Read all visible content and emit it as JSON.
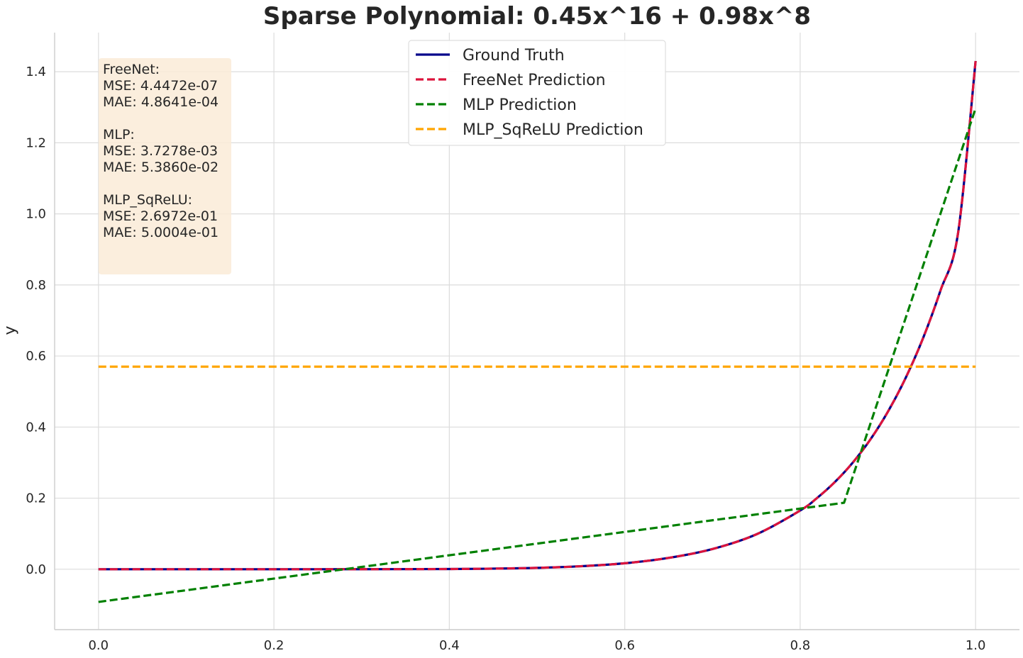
{
  "chart_data": {
    "type": "line",
    "title": "Sparse Polynomial: 0.45x^16 + 0.98x^8",
    "xlabel": "",
    "ylabel": "y",
    "xlim": [
      -0.05,
      1.05
    ],
    "ylim": [
      -0.17,
      1.51
    ],
    "grid": true,
    "x_ticks": [
      0.0,
      0.2,
      0.4,
      0.6,
      0.8,
      1.0
    ],
    "x_tick_labels": [
      "0.0",
      "0.2",
      "0.4",
      "0.6",
      "0.8",
      "1.0"
    ],
    "y_ticks": [
      0.0,
      0.2,
      0.4,
      0.6,
      0.8,
      1.0,
      1.2,
      1.4
    ],
    "y_tick_labels": [
      "0.0",
      "0.2",
      "0.4",
      "0.6",
      "0.8",
      "1.0",
      "1.2",
      "1.4"
    ],
    "legend_position": "top-center",
    "series": [
      {
        "name": "Ground Truth",
        "color": "#00008b",
        "style": "solid",
        "x": [
          0.0,
          0.1,
          0.2,
          0.3,
          0.4,
          0.45,
          0.5,
          0.55,
          0.6,
          0.65,
          0.7,
          0.75,
          0.8,
          0.82,
          0.84,
          0.86,
          0.88,
          0.9,
          0.92,
          0.94,
          0.96,
          0.98,
          1.0
        ],
        "y": [
          0.0,
          0.0,
          0.0,
          0.0001,
          0.0006,
          0.0017,
          0.0038,
          0.0084,
          0.0168,
          0.0319,
          0.0569,
          0.0981,
          0.1652,
          0.202,
          0.2465,
          0.3002,
          0.365,
          0.4431,
          0.537,
          0.6496,
          0.7845,
          0.9458,
          1.43
        ]
      },
      {
        "name": "FreeNet Prediction",
        "color": "#dc143c",
        "style": "dashed",
        "x": [
          0.0,
          0.1,
          0.2,
          0.3,
          0.4,
          0.45,
          0.5,
          0.55,
          0.6,
          0.65,
          0.7,
          0.75,
          0.8,
          0.82,
          0.84,
          0.86,
          0.88,
          0.9,
          0.92,
          0.94,
          0.96,
          0.98,
          1.0
        ],
        "y": [
          0.0,
          0.0,
          0.0,
          0.0001,
          0.0006,
          0.0017,
          0.0038,
          0.0084,
          0.0168,
          0.0319,
          0.0569,
          0.0981,
          0.1652,
          0.202,
          0.2465,
          0.3002,
          0.365,
          0.4431,
          0.537,
          0.6496,
          0.7845,
          0.9458,
          1.43
        ]
      },
      {
        "name": "MLP Prediction",
        "color": "#008000",
        "style": "dashed",
        "x": [
          0.0,
          0.85,
          1.0
        ],
        "y": [
          -0.092,
          0.187,
          1.297
        ]
      },
      {
        "name": "MLP_SqReLU Prediction",
        "color": "#ffa500",
        "style": "dashed",
        "x": [
          0.0,
          1.0
        ],
        "y": [
          0.57,
          0.57
        ]
      }
    ],
    "annotation": {
      "lines": [
        "FreeNet:",
        "MSE: 4.4472e-07",
        "MAE: 4.8641e-04",
        "",
        "MLP:",
        "MSE: 3.7278e-03",
        "MAE: 5.3860e-02",
        "",
        "MLP_SqReLU:",
        "MSE: 2.6972e-01",
        "MAE: 5.0004e-01"
      ],
      "background": "#faebd7"
    }
  }
}
